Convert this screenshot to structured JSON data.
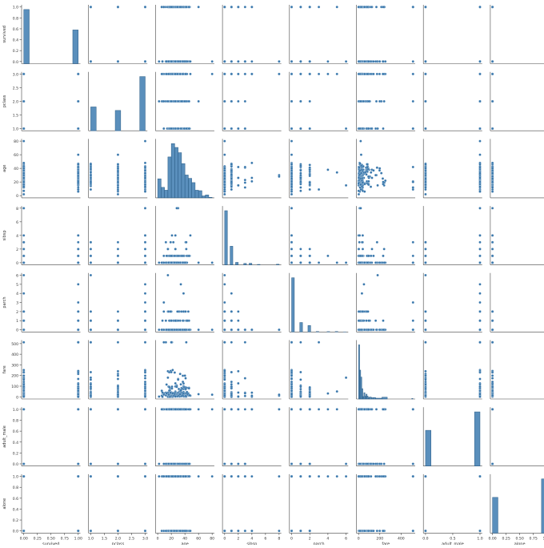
{
  "chart_data": {
    "type": "pairplot",
    "title": "",
    "variables": [
      "survived",
      "pclass",
      "age",
      "sibsp",
      "parch",
      "fare",
      "adult_male",
      "alone"
    ],
    "axis_labels": [
      "survived",
      "pclass",
      "age",
      "sibsp",
      "parch",
      "fare",
      "adult_male",
      "alone"
    ],
    "grid": false,
    "legend": "none",
    "colors": {
      "marker": "#3776ab",
      "bar_fill": "#3d7bb0",
      "edge": "#ffffff"
    },
    "axes": {
      "survived": {
        "range": [
          0,
          1
        ],
        "ticks": [
          "0.0",
          "0.2",
          "0.4",
          "0.6",
          "0.8",
          "1.0"
        ],
        "tick_values": [
          0,
          0.2,
          0.4,
          0.6,
          0.8,
          1.0
        ],
        "x_ticks": [
          "0.00",
          "0.25",
          "0.50",
          "0.75",
          "1.00"
        ],
        "x_tick_values": [
          0,
          0.25,
          0.5,
          0.75,
          1.0
        ]
      },
      "pclass": {
        "range": [
          1,
          3
        ],
        "ticks": [
          "1.0",
          "1.5",
          "2.0",
          "2.5",
          "3.0"
        ],
        "tick_values": [
          1,
          1.5,
          2,
          2.5,
          3
        ]
      },
      "age": {
        "range": [
          0,
          80
        ],
        "ticks": [
          "0",
          "20",
          "40",
          "60",
          "80"
        ],
        "tick_values": [
          0,
          20,
          40,
          60,
          80
        ]
      },
      "sibsp": {
        "range": [
          0,
          8
        ],
        "ticks": [
          "0",
          "2",
          "4",
          "6",
          "8"
        ],
        "tick_values": [
          0,
          2,
          4,
          6,
          8
        ]
      },
      "parch": {
        "range": [
          0,
          6
        ],
        "ticks": [
          "0",
          "1",
          "2",
          "3",
          "4",
          "5",
          "6"
        ],
        "tick_values": [
          0,
          1,
          2,
          3,
          4,
          5,
          6
        ],
        "x_ticks": [
          "0",
          "2",
          "4",
          "6"
        ],
        "x_tick_values": [
          0,
          2,
          4,
          6
        ]
      },
      "fare": {
        "range": [
          0,
          512.33
        ],
        "ticks": [
          "0",
          "100",
          "200",
          "300",
          "400",
          "500"
        ],
        "tick_values": [
          0,
          100,
          200,
          300,
          400,
          500
        ],
        "x_ticks": [
          "0",
          "200",
          "400"
        ],
        "x_tick_values": [
          0,
          200,
          400
        ]
      },
      "adult_male": {
        "range": [
          0,
          1
        ],
        "ticks": [
          "0.0",
          "0.2",
          "0.4",
          "0.6",
          "0.8",
          "1.0"
        ],
        "tick_values": [
          0,
          0.2,
          0.4,
          0.6,
          0.8,
          1.0
        ],
        "x_ticks": [
          "0.0",
          "0.5",
          "1.0"
        ],
        "x_tick_values": [
          0,
          0.5,
          1.0
        ]
      },
      "alone": {
        "range": [
          0,
          1
        ],
        "ticks": [
          "0.0",
          "0.2",
          "0.4",
          "0.6",
          "0.8",
          "1.0"
        ],
        "tick_values": [
          0,
          0.2,
          0.4,
          0.6,
          0.8,
          1.0
        ],
        "x_ticks": [
          "0.00",
          "0.25",
          "0.50",
          "0.75",
          "1.00"
        ],
        "x_tick_values": [
          0,
          0.25,
          0.5,
          0.75,
          1.0
        ]
      }
    },
    "diagonal_histograms": {
      "survived": {
        "bins": [
          {
            "x0": 0,
            "x1": 0.1,
            "count": 549
          },
          {
            "x0": 0.9,
            "x1": 1,
            "count": 342
          }
        ]
      },
      "pclass": {
        "bins": [
          {
            "x0": 1,
            "x1": 1.2,
            "count": 216
          },
          {
            "x0": 1.9,
            "x1": 2.1,
            "count": 184
          },
          {
            "x0": 2.8,
            "x1": 3,
            "count": 491
          }
        ]
      },
      "age": {
        "bins": [
          {
            "x0": 0,
            "x1": 5,
            "count": 40
          },
          {
            "x0": 5,
            "x1": 10,
            "count": 22
          },
          {
            "x0": 10,
            "x1": 15,
            "count": 16
          },
          {
            "x0": 15,
            "x1": 20,
            "count": 86
          },
          {
            "x0": 20,
            "x1": 25,
            "count": 114
          },
          {
            "x0": 25,
            "x1": 30,
            "count": 106
          },
          {
            "x0": 30,
            "x1": 35,
            "count": 95
          },
          {
            "x0": 35,
            "x1": 40,
            "count": 72
          },
          {
            "x0": 40,
            "x1": 45,
            "count": 48
          },
          {
            "x0": 45,
            "x1": 50,
            "count": 41
          },
          {
            "x0": 50,
            "x1": 55,
            "count": 32
          },
          {
            "x0": 55,
            "x1": 60,
            "count": 16
          },
          {
            "x0": 60,
            "x1": 65,
            "count": 15
          },
          {
            "x0": 65,
            "x1": 70,
            "count": 4
          },
          {
            "x0": 70,
            "x1": 75,
            "count": 6
          },
          {
            "x0": 75,
            "x1": 80,
            "count": 1
          }
        ]
      },
      "sibsp": {
        "bins": [
          {
            "x0": 0,
            "x1": 0.4,
            "count": 608
          },
          {
            "x0": 0.8,
            "x1": 1.2,
            "count": 209
          },
          {
            "x0": 1.6,
            "x1": 2.0,
            "count": 28
          },
          {
            "x0": 2.8,
            "x1": 3.2,
            "count": 16
          },
          {
            "x0": 3.6,
            "x1": 4.0,
            "count": 18
          },
          {
            "x0": 4.8,
            "x1": 5.2,
            "count": 5
          },
          {
            "x0": 7.6,
            "x1": 8.0,
            "count": 7
          }
        ]
      },
      "parch": {
        "bins": [
          {
            "x0": 0,
            "x1": 0.3,
            "count": 678
          },
          {
            "x0": 0.9,
            "x1": 1.2,
            "count": 118
          },
          {
            "x0": 1.8,
            "x1": 2.1,
            "count": 80
          },
          {
            "x0": 2.7,
            "x1": 3.0,
            "count": 5
          },
          {
            "x0": 3.9,
            "x1": 4.2,
            "count": 4
          },
          {
            "x0": 4.8,
            "x1": 5.1,
            "count": 5
          },
          {
            "x0": 5.7,
            "x1": 6.0,
            "count": 1
          }
        ]
      },
      "fare": {
        "bins": [
          {
            "x0": 0,
            "x1": 10,
            "count": 336
          },
          {
            "x0": 10,
            "x1": 20,
            "count": 179
          },
          {
            "x0": 20,
            "x1": 30,
            "count": 136
          },
          {
            "x0": 30,
            "x1": 40,
            "count": 64
          },
          {
            "x0": 40,
            "x1": 50,
            "count": 15
          },
          {
            "x0": 50,
            "x1": 60,
            "count": 39
          },
          {
            "x0": 60,
            "x1": 70,
            "count": 17
          },
          {
            "x0": 70,
            "x1": 80,
            "count": 30
          },
          {
            "x0": 80,
            "x1": 90,
            "count": 18
          },
          {
            "x0": 90,
            "x1": 100,
            "count": 8
          },
          {
            "x0": 100,
            "x1": 120,
            "count": 12
          },
          {
            "x0": 120,
            "x1": 140,
            "count": 8
          },
          {
            "x0": 140,
            "x1": 160,
            "count": 9
          },
          {
            "x0": 160,
            "x1": 220,
            "count": 5
          },
          {
            "x0": 220,
            "x1": 270,
            "count": 11
          },
          {
            "x0": 500,
            "x1": 512,
            "count": 3
          }
        ]
      },
      "adult_male": {
        "bins": [
          {
            "x0": 0,
            "x1": 0.1,
            "count": 354
          },
          {
            "x0": 0.9,
            "x1": 1,
            "count": 537
          }
        ]
      },
      "alone": {
        "bins": [
          {
            "x0": 0,
            "x1": 0.1,
            "count": 354
          },
          {
            "x0": 0.9,
            "x1": 1,
            "count": 537
          }
        ]
      }
    }
  }
}
